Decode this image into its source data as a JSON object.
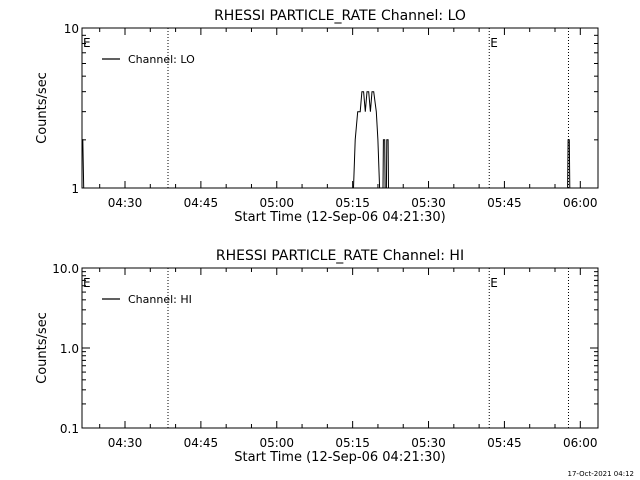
{
  "chart_data": [
    {
      "type": "line",
      "title": "RHESSI PARTICLE_RATE Channel: LO",
      "xlabel": "Start Time (12-Sep-06 04:21:30)",
      "ylabel": "Counts/sec",
      "y_scale": "log",
      "ylim": [
        1,
        10
      ],
      "y_ticks": [
        {
          "value": 1,
          "label": "1"
        },
        {
          "value": 10,
          "label": "10"
        }
      ],
      "xlim": [
        "04:21:30",
        "06:03:30"
      ],
      "x_ticks": [
        "04:30",
        "04:45",
        "05:00",
        "05:15",
        "05:30",
        "05:45",
        "06:00"
      ],
      "legend": {
        "placement": "top-left",
        "label": "Channel: LO"
      },
      "event_markers": [
        {
          "time": "04:21:30",
          "label": "E",
          "line": false
        },
        {
          "time": "04:38:30",
          "label": "",
          "line": true
        },
        {
          "time": "05:42:00",
          "label": "E",
          "line": true
        },
        {
          "time": "05:57:40",
          "label": "",
          "line": true
        }
      ],
      "series": [
        {
          "name": "Channel: LO",
          "segments": [
            [
              [
                "04:21:30",
                2
              ],
              [
                "04:21:40",
                2
              ],
              [
                "04:21:50",
                1
              ]
            ],
            [
              [
                "05:15:10",
                1
              ],
              [
                "05:15:30",
                2
              ],
              [
                "05:16:00",
                3
              ],
              [
                "05:16:30",
                3
              ],
              [
                "05:16:50",
                4
              ],
              [
                "05:17:10",
                4
              ],
              [
                "05:17:30",
                3
              ],
              [
                "05:17:50",
                4
              ],
              [
                "05:18:10",
                4
              ],
              [
                "05:18:30",
                3
              ],
              [
                "05:18:50",
                4
              ],
              [
                "05:19:10",
                4
              ],
              [
                "05:19:40",
                3
              ],
              [
                "05:20:00",
                2
              ],
              [
                "05:20:20",
                1
              ]
            ],
            [
              [
                "05:21:00",
                1
              ],
              [
                "05:21:05",
                2
              ],
              [
                "05:21:20",
                2
              ],
              [
                "05:21:25",
                1
              ]
            ],
            [
              [
                "05:21:40",
                1
              ],
              [
                "05:21:45",
                2
              ],
              [
                "05:22:00",
                2
              ],
              [
                "05:22:05",
                1
              ]
            ],
            [
              [
                "05:57:30",
                1
              ],
              [
                "05:57:35",
                2
              ],
              [
                "05:57:50",
                2
              ],
              [
                "05:57:55",
                1
              ]
            ]
          ]
        }
      ]
    },
    {
      "type": "line",
      "title": "RHESSI PARTICLE_RATE Channel: HI",
      "xlabel": "Start Time (12-Sep-06 04:21:30)",
      "ylabel": "Counts/sec",
      "y_scale": "log",
      "ylim": [
        0.1,
        10
      ],
      "y_ticks": [
        {
          "value": 0.1,
          "label": "0.1"
        },
        {
          "value": 1,
          "label": "1.0"
        },
        {
          "value": 10,
          "label": "10.0"
        }
      ],
      "xlim": [
        "04:21:30",
        "06:03:30"
      ],
      "x_ticks": [
        "04:30",
        "04:45",
        "05:00",
        "05:15",
        "05:30",
        "05:45",
        "06:00"
      ],
      "legend": {
        "placement": "top-left",
        "label": "Channel: HI"
      },
      "event_markers": [
        {
          "time": "04:21:30",
          "label": "E",
          "line": false
        },
        {
          "time": "04:38:30",
          "label": "",
          "line": true
        },
        {
          "time": "05:42:00",
          "label": "E",
          "line": true
        },
        {
          "time": "05:57:40",
          "label": "",
          "line": true
        }
      ],
      "series": [
        {
          "name": "Channel: HI",
          "segments": []
        }
      ]
    }
  ],
  "footer": {
    "timestamp": "17-Oct-2021 04:12"
  }
}
